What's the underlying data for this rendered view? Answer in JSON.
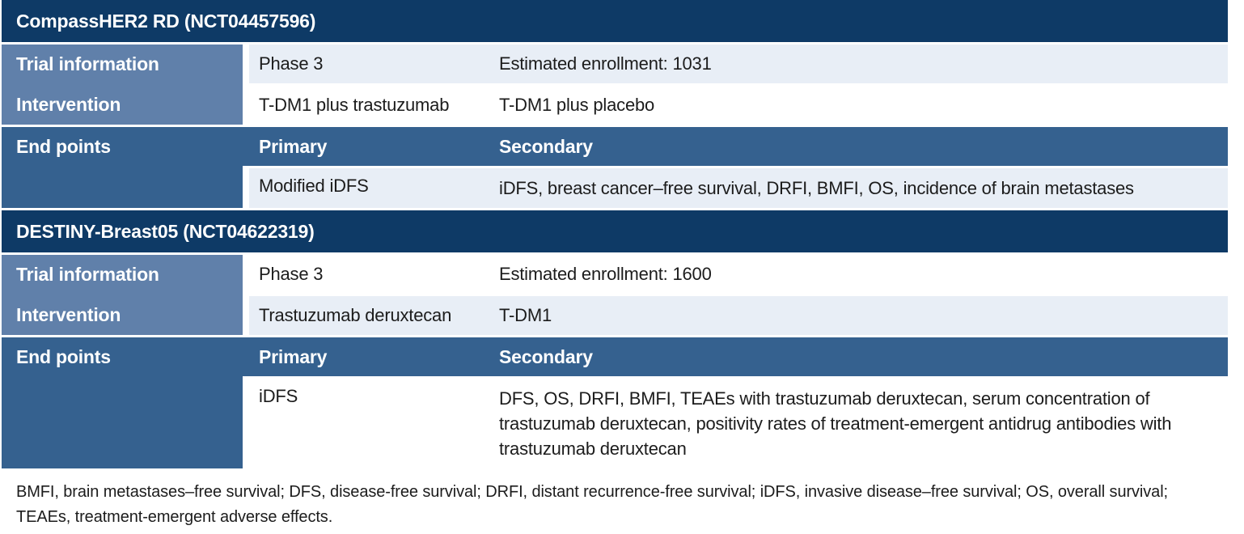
{
  "colors": {
    "section_header_bg": "#0e3a66",
    "label_column_bg": "#6080aa",
    "endpoints_bg": "#35618f",
    "light_row_bg": "#e8eef6",
    "white_row_bg": "#ffffff",
    "header_text": "#ffffff",
    "body_text": "#1c1c1c"
  },
  "sections": [
    {
      "title": "CompassHER2 RD (NCT04457596)",
      "labels": {
        "trial": "Trial information",
        "intervention": "Intervention",
        "endpoints": "End points",
        "primary": "Primary",
        "secondary": "Secondary"
      },
      "trial_info": {
        "col1": "Phase 3",
        "col2": "Estimated enrollment: 1031"
      },
      "intervention": {
        "col1": "T-DM1 plus trastuzumab",
        "col2": "T-DM1 plus placebo"
      },
      "endpoints": {
        "primary": "Modified iDFS",
        "secondary": "iDFS, breast cancer–free survival, DRFI, BMFI, OS, incidence of brain metastases"
      },
      "shades": {
        "trial": "light",
        "intervention": "white",
        "endpoint": "light"
      }
    },
    {
      "title": "DESTINY-Breast05 (NCT04622319)",
      "labels": {
        "trial": "Trial information",
        "intervention": "Intervention",
        "endpoints": "End points",
        "primary": "Primary",
        "secondary": "Secondary"
      },
      "trial_info": {
        "col1": "Phase 3",
        "col2": "Estimated enrollment: 1600"
      },
      "intervention": {
        "col1": "Trastuzumab deruxtecan",
        "col2": "T-DM1"
      },
      "endpoints": {
        "primary": "iDFS",
        "secondary": "DFS, OS, DRFI, BMFI, TEAEs with trastuzumab deruxtecan, serum concentration of trastuzumab deruxtecan, positivity rates of treatment-emergent antidrug antibodies with trastuzumab deruxtecan"
      },
      "shades": {
        "trial": "white",
        "intervention": "light",
        "endpoint": "white"
      }
    }
  ],
  "footnote": "BMFI, brain metastases–free survival; DFS, disease-free survival; DRFI, distant recurrence-free survival; iDFS, invasive disease–free survival; OS, overall survival; TEAEs, treatment-emergent adverse effects."
}
